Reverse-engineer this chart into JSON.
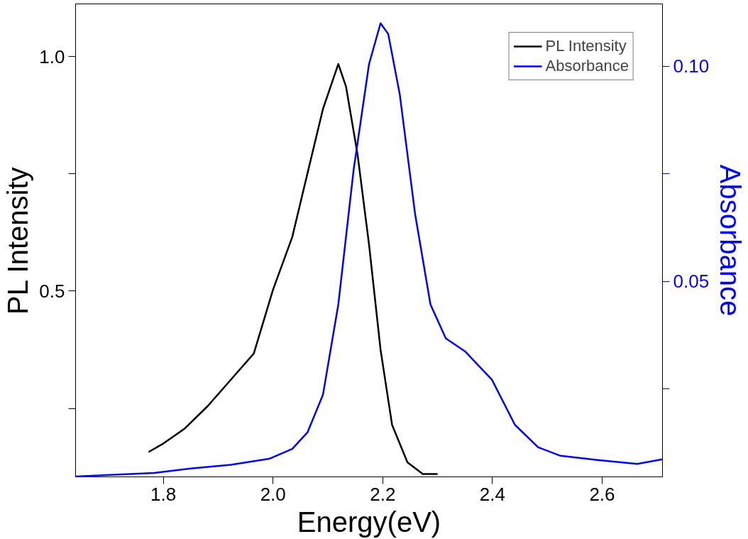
{
  "chart_data": {
    "type": "line",
    "xlabel": "Energy(eV)",
    "ylabel": "PL Intensity",
    "y2label": "Absorbance",
    "xlim": [
      1.64,
      2.71
    ],
    "xticks": [
      1.8,
      {
        "value": 2.0,
        "label": "2.0"
      },
      2.2,
      2.4,
      2.6
    ],
    "ylim": [
      0.104,
      1.112
    ],
    "yticks": [
      {
        "value": 0.25,
        "label": null
      },
      0.5,
      {
        "value": 0.75,
        "label": null
      },
      {
        "value": 1.0,
        "label": "1.0"
      }
    ],
    "y2lim": [
      0.0045,
      0.1145
    ],
    "y2ticks": [
      {
        "value": 0.025,
        "label": null
      },
      0.05,
      {
        "value": 0.075,
        "label": null
      },
      {
        "value": 0.1,
        "label": "0.10"
      }
    ],
    "grid": false,
    "legend": "top right",
    "marker": "none",
    "line_style": "solid",
    "series": [
      {
        "name": "PL Intensity",
        "color": "#000000",
        "x": [
          1.773,
          1.8,
          1.839,
          1.881,
          1.923,
          1.965,
          2.0,
          2.035,
          2.063,
          2.091,
          2.112,
          2.119,
          2.133,
          2.154,
          2.175,
          2.196,
          2.217,
          2.245,
          2.273,
          2.3
        ],
        "values": [
          0.157,
          0.175,
          0.207,
          0.255,
          0.311,
          0.367,
          0.503,
          0.615,
          0.752,
          0.888,
          0.96,
          0.984,
          0.936,
          0.792,
          0.599,
          0.375,
          0.215,
          0.135,
          0.11,
          0.11
        ]
      },
      {
        "name": "Absorbance",
        "color": "#0000ff",
        "axis": "y2",
        "x": [
          1.64,
          1.783,
          1.853,
          1.923,
          1.993,
          2.035,
          2.063,
          2.091,
          2.119,
          2.147,
          2.175,
          2.196,
          2.21,
          2.231,
          2.259,
          2.287,
          2.315,
          2.35,
          2.399,
          2.441,
          2.483,
          2.524,
          2.594,
          2.664,
          2.71
        ],
        "values": [
          0.0046,
          0.0054,
          0.0065,
          0.0073,
          0.0087,
          0.011,
          0.0149,
          0.0236,
          0.0446,
          0.076,
          0.1005,
          0.11,
          0.1075,
          0.0935,
          0.0656,
          0.0446,
          0.0367,
          0.0337,
          0.0271,
          0.0166,
          0.0114,
          0.0094,
          0.0084,
          0.0075,
          0.0086
        ]
      }
    ]
  }
}
